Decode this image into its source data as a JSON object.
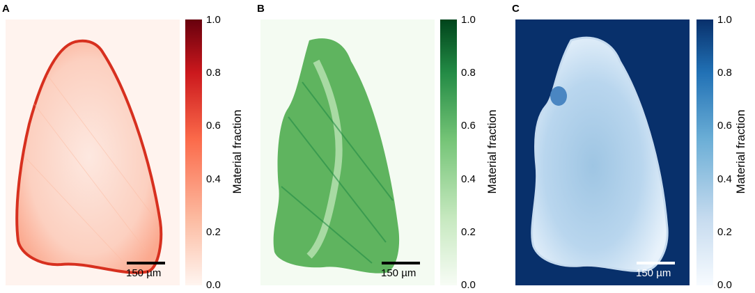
{
  "panels": [
    {
      "label": "A",
      "scalebar": "150 µm",
      "colormap": {
        "low": "#fff5f0",
        "mid": "#fb6a4a",
        "high": "#67000d"
      },
      "colorbar": {
        "title": "Material fraction",
        "ticks": [
          "1.0",
          "0.8",
          "0.6",
          "0.4",
          "0.2",
          "0.0"
        ]
      }
    },
    {
      "label": "B",
      "scalebar": "150 µm",
      "colormap": {
        "low": "#f7fcf5",
        "mid": "#74c476",
        "high": "#00441b"
      },
      "colorbar": {
        "title": "Material fraction",
        "ticks": [
          "1.0",
          "0.8",
          "0.6",
          "0.4",
          "0.2",
          "0.0"
        ]
      }
    },
    {
      "label": "C",
      "scalebar": "150 µm",
      "colormap": {
        "low": "#f7fbff",
        "mid": "#6baed6",
        "high": "#08306b"
      },
      "colorbar": {
        "title": "Material fraction",
        "ticks": [
          "1.0",
          "0.8",
          "0.6",
          "0.4",
          "0.2",
          "0.0"
        ]
      }
    }
  ]
}
